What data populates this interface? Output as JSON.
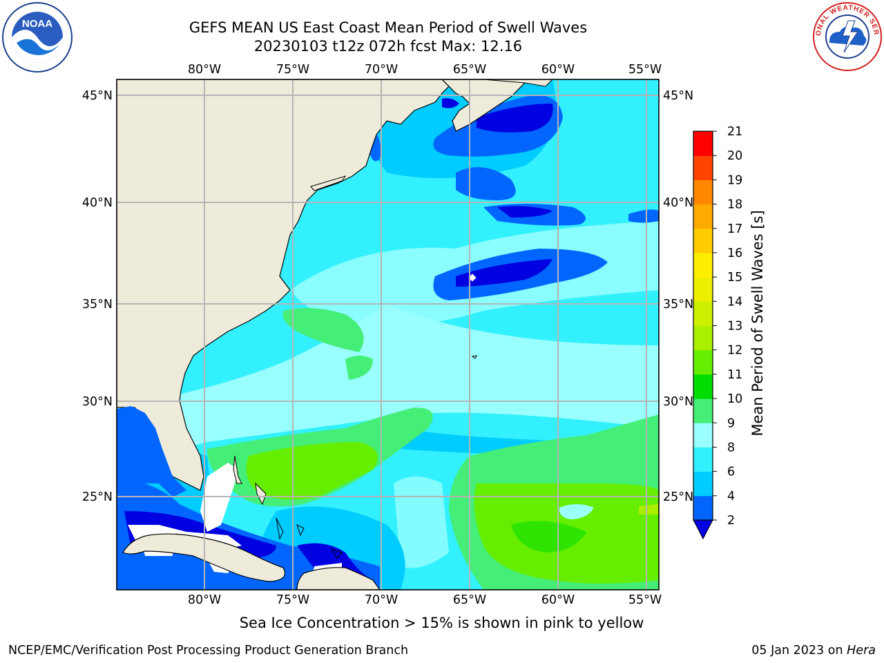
{
  "title_line1": "GEFS MEAN US East Coast Mean Period of Swell Waves",
  "title_line2": "20230103 t12z 072h fcst   Max: 12.16",
  "lon_labels": [
    "80°W",
    "75°W",
    "70°W",
    "65°W",
    "60°W",
    "55°W"
  ],
  "lat_labels": [
    "45°N",
    "40°N",
    "35°N",
    "30°N",
    "25°N"
  ],
  "colorbar": {
    "label": "Mean Period of Swell Waves [s]",
    "ticks": [
      "2",
      "4",
      "6",
      "8",
      "9",
      "10",
      "11",
      "12",
      "13",
      "14",
      "15",
      "16",
      "17",
      "18",
      "19",
      "20",
      "21"
    ],
    "colors": [
      "#0000e0",
      "#0066ff",
      "#00ccff",
      "#33f0ff",
      "#99ffff",
      "#44ee77",
      "#00dd00",
      "#66ee00",
      "#aaee00",
      "#ccf000",
      "#eeee00",
      "#ffee00",
      "#ffcc00",
      "#ffaa00",
      "#ff8800",
      "#ff4400",
      "#ff0000"
    ],
    "extend": "min"
  },
  "ice_note": "Sea Ice Concentration > 15% is shown in pink to yellow",
  "footer_left": "NCEP/EMC/Verification Post Processing Product Generation Branch",
  "footer_date": "05 Jan 2023",
  "footer_on": "on",
  "footer_machine": "Hera",
  "logos": {
    "left": "NOAA",
    "right": "NATIONAL WEATHER SERVICE"
  },
  "land_color": "#efebdb",
  "grid_color": "#b4b4b4"
}
